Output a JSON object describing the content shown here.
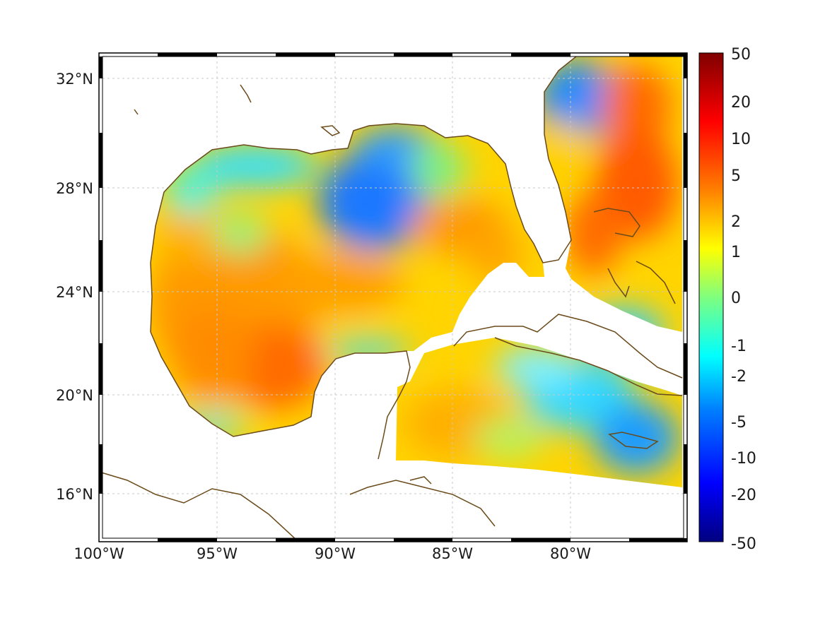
{
  "map": {
    "lon_labels": [
      "100°W",
      "95°W",
      "90°W",
      "85°W",
      "80°W"
    ],
    "lat_labels": [
      "32°N",
      "28°N",
      "24°N",
      "20°N",
      "16°N"
    ],
    "colors": {
      "coastline": "#6b4a1a",
      "grid": "#c8c8c8",
      "land": "#ffffff"
    }
  },
  "colorbar": {
    "labels": [
      "50",
      "20",
      "10",
      "5",
      "2",
      "1",
      "0",
      "-1",
      "-2",
      "-5",
      "-10",
      "-20",
      "-50"
    ],
    "colors": [
      "#7f0000",
      "#ff0000",
      "#ff7f00",
      "#ffff00",
      "#7fff7f",
      "#00ffff",
      "#007fff",
      "#0000ff",
      "#00007f"
    ]
  }
}
